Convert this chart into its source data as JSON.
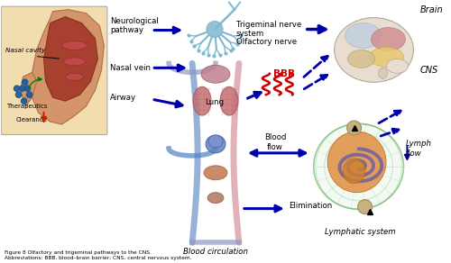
{
  "title": "Figure 8 Olfactory and trigeminal pathways to the CNS.",
  "subtitle": "Abbreviations: BBB, blood–brain barrier; CNS, central nervous system.",
  "bg_color": "#ffffff",
  "labels": {
    "nasal_cavity": "Nasal cavity",
    "therapeutics": "Therapeutics",
    "clearance": "Clearance",
    "neurological": "Neurological\npathway",
    "nasal_vein": "Nasal vein",
    "airway": "Airway",
    "trigeminal": "Trigeminal nerve\nsystem",
    "olfactory": "Olfactory nerve",
    "bbb": "BBB",
    "brain": "Brain",
    "cns": "CNS",
    "lung": "Lung",
    "blood_flow": "Blood\nflow",
    "lymph_flow": "Lymph\nflow",
    "lymphatic": "Lymphatic system",
    "elimination": "Elimination",
    "blood_circ": "Blood circulation"
  },
  "arrow_color": "#0000aa",
  "bbb_color": "#cc0000",
  "nasal_box_color": "#f2ddb0",
  "nasal_skin_color": "#d4956a",
  "nasal_inner_color": "#a84030",
  "lung_color": "#c87070",
  "vessel_blue": "#5080c0",
  "vessel_pink": "#d08090",
  "heart_color": "#6080c0",
  "lymph_green": "#70b870",
  "lymph_orange": "#e09040",
  "lymph_purple": "#7060a0",
  "neuron_color": "#80b8d0",
  "brain_base": "#e8ddd0",
  "brain_blue": "#c0d0e0",
  "brain_red": "#d09090",
  "brain_yellow": "#e8c870",
  "brain_tan": "#d4c090",
  "therapeutics_dot_color": "#1a5799"
}
